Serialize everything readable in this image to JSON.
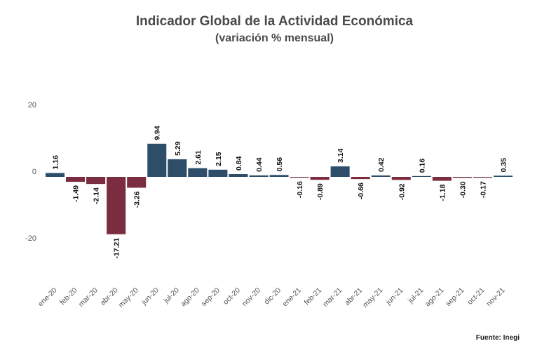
{
  "title": "Indicador Global de la Actividad Económica",
  "subtitle": "(variación % mensual)",
  "source": "Fuente: Inegi",
  "colors": {
    "positive": "#2e4d68",
    "negative": "#7b2c3f",
    "text": "#4a4a4a"
  },
  "chart_data": {
    "type": "bar",
    "title": "Indicador Global de la Actividad Económica",
    "subtitle": "(variación % mensual)",
    "xlabel": "",
    "ylabel": "",
    "ylim": [
      -30,
      22
    ],
    "yticks": [
      20,
      0,
      -20
    ],
    "grid": false,
    "categories": [
      "ene-20",
      "feb-20",
      "mar-20",
      "abr-20",
      "may-20",
      "jun-20",
      "jul-20",
      "ago-20",
      "sep-20",
      "oct-20",
      "nov-20",
      "dic-20",
      "ene-21",
      "feb-21",
      "mar-21",
      "abr-21",
      "may-21",
      "jun-21",
      "jul-21",
      "ago-21",
      "sep-21",
      "oct-21",
      "nov-21"
    ],
    "values": [
      1.16,
      -1.49,
      -2.14,
      -17.21,
      -3.26,
      9.94,
      5.29,
      2.61,
      2.15,
      0.84,
      0.44,
      0.56,
      -0.16,
      -0.89,
      3.14,
      -0.66,
      0.42,
      -0.92,
      0.16,
      -1.18,
      -0.3,
      -0.17,
      0.35
    ],
    "value_labels": [
      "1.16",
      "-1.49",
      "-2.14",
      "-17.21",
      "-3.26",
      "9.94",
      "5.29",
      "2.61",
      "2.15",
      "0.84",
      "0.44",
      "0.56",
      "-0.16",
      "-0.89",
      "3.14",
      "-0.66",
      "0.42",
      "-0.92",
      "0.16",
      "-1.18",
      "-0.30",
      "-0.17",
      "0.35"
    ]
  }
}
